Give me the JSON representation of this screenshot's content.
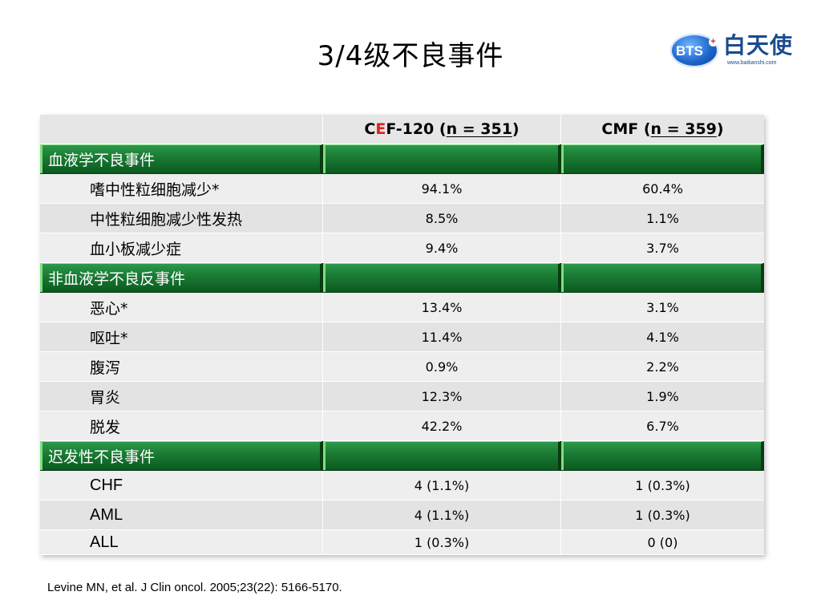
{
  "title": "3/4级不良事件",
  "logo": {
    "badge_text": "BTS",
    "badge_mark": "+",
    "name": "白天使",
    "url": "www.baitianshi.com",
    "brand_color": "#1c63c9"
  },
  "table": {
    "header": {
      "col1": "",
      "col2": {
        "pre": "C",
        "red": "E",
        "mid": "F-120 (",
        "n": "n = 351",
        "post": " )"
      },
      "col3": {
        "pre": "CMF (",
        "n": "n = 359",
        "post": " )"
      }
    },
    "sections": [
      {
        "label": "血液学不良事件",
        "rows": [
          {
            "name": "嗜中性粒细胞减少*",
            "cef": "94.1%",
            "cmf": "60.4%"
          },
          {
            "name": "中性粒细胞减少性发热",
            "cef": "8.5%",
            "cmf": "1.1%"
          },
          {
            "name": "血小板减少症",
            "cef": "9.4%",
            "cmf": "3.7%"
          }
        ]
      },
      {
        "label": "非血液学不良反事件",
        "rows": [
          {
            "name": "恶心*",
            "cef": "13.4%",
            "cmf": "3.1%"
          },
          {
            "name": "呕吐*",
            "cef": "11.4%",
            "cmf": "4.1%"
          },
          {
            "name": "腹泻",
            "cef": "0.9%",
            "cmf": "2.2%"
          },
          {
            "name": "胃炎",
            "cef": "12.3%",
            "cmf": "1.9%"
          },
          {
            "name": "脱发",
            "cef": "42.2%",
            "cmf": "6.7%"
          }
        ]
      },
      {
        "label": "迟发性不良事件",
        "rows": [
          {
            "name": "CHF",
            "cef": "4 (1.1%)",
            "cmf": "1 (0.3%)"
          },
          {
            "name": "AML",
            "cef": "4 (1.1%)",
            "cmf": "1 (0.3%)"
          },
          {
            "name": "ALL",
            "cef": "1 (0.3%)",
            "cmf": "0 (0)"
          }
        ]
      }
    ],
    "colors": {
      "group_green": "#1a7a33",
      "cell_gray": "#eeeeee",
      "highlight_red": "#e02020"
    }
  },
  "reference": "Levine MN, et al. J Clin oncol. 2005;23(22): 5166-5170."
}
